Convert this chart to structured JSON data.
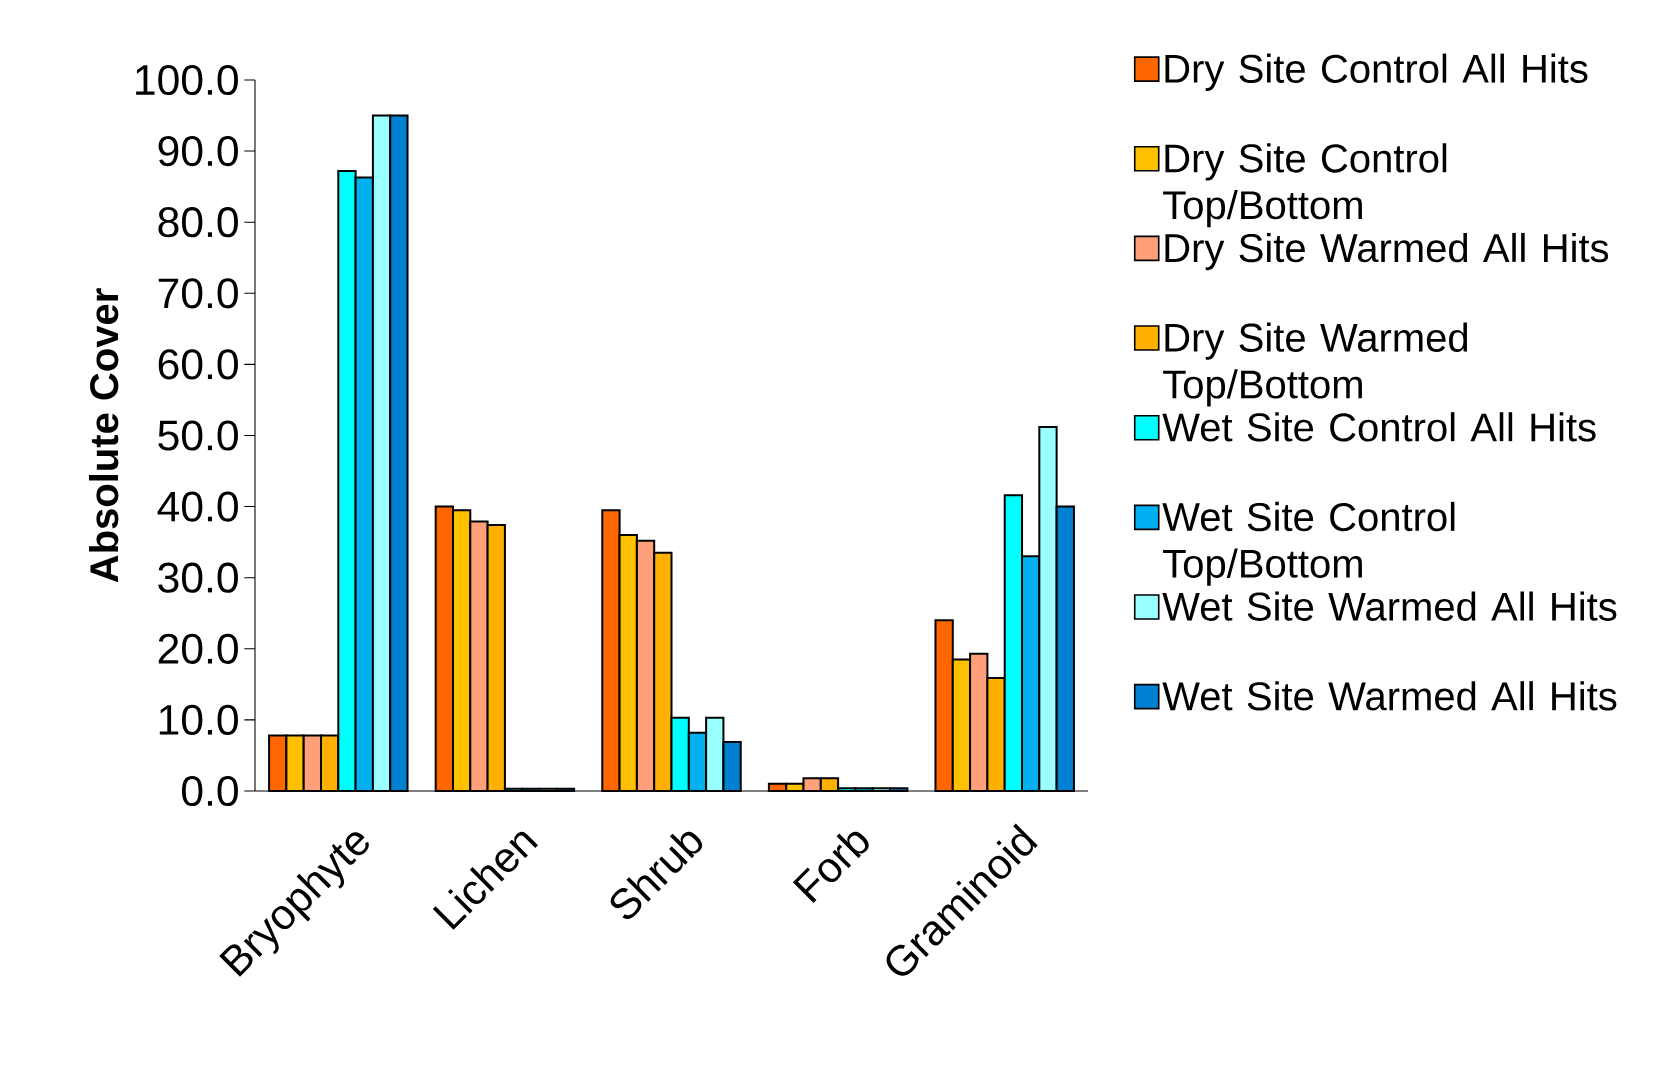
{
  "chart_data": {
    "type": "bar",
    "ylabel": "Absolute Cover",
    "categories": [
      "Bryophyte",
      "Lichen",
      "Shrub",
      "Forb",
      "Graminoid"
    ],
    "series": [
      {
        "name": "Dry Site Control All Hits",
        "color": "#ff6600",
        "values": [
          7.8,
          40.0,
          39.5,
          1.0,
          24.0
        ]
      },
      {
        "name": "Dry Site Control Top/Bottom",
        "color": "#ffc000",
        "values": [
          7.8,
          39.5,
          36.0,
          1.0,
          18.5
        ]
      },
      {
        "name": "Dry Site Warmed All Hits",
        "color": "#ffa07a",
        "values": [
          7.8,
          37.9,
          35.2,
          1.8,
          19.3
        ]
      },
      {
        "name": "Dry Site Warmed Top/Bottom",
        "color": "#ffb000",
        "values": [
          7.8,
          37.4,
          33.5,
          1.8,
          15.9
        ]
      },
      {
        "name": "Wet Site Control All Hits",
        "color": "#00ffff",
        "values": [
          87.2,
          0.3,
          10.3,
          0.4,
          41.6
        ]
      },
      {
        "name": "Wet Site Control Top/Bottom",
        "color": "#00b0f0",
        "values": [
          86.3,
          0.3,
          8.2,
          0.4,
          33.0
        ]
      },
      {
        "name": "Wet Site Warmed All Hits",
        "color": "#99ffff",
        "values": [
          95.0,
          0.3,
          10.3,
          0.4,
          51.2
        ]
      },
      {
        "name": "Wet Site Warmed All Hits",
        "color": "#0080d0",
        "values": [
          95.0,
          0.3,
          6.9,
          0.4,
          40.0
        ]
      }
    ],
    "ylim": [
      0,
      100
    ],
    "yticks": [
      {
        "value": 0,
        "label": "0.0"
      },
      {
        "value": 10,
        "label": "10.0"
      },
      {
        "value": 20,
        "label": "20.0"
      },
      {
        "value": 30,
        "label": "30.0"
      },
      {
        "value": 40,
        "label": "40.0"
      },
      {
        "value": 50,
        "label": "50.0"
      },
      {
        "value": 60,
        "label": "60.0"
      },
      {
        "value": 70,
        "label": "70.0"
      },
      {
        "value": 80,
        "label": "80.0"
      },
      {
        "value": 90,
        "label": "90.0"
      },
      {
        "value": 100,
        "label": "100.0"
      }
    ],
    "legend": "right",
    "grid": false
  }
}
